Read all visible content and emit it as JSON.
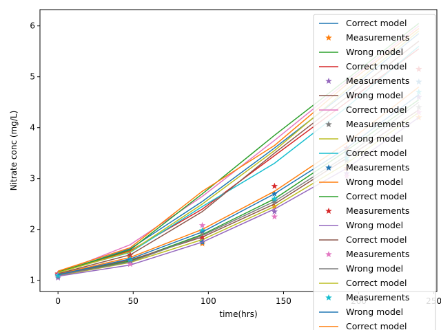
{
  "chart_data": {
    "type": "line",
    "title": "",
    "xlabel": "time(hrs)",
    "ylabel": "Nitrate conc (mg/L)",
    "xlim": [
      -12,
      252
    ],
    "ylim": [
      0.78,
      6.32
    ],
    "xticks": [
      0,
      50,
      100,
      150,
      200,
      250
    ],
    "yticks": [
      1,
      2,
      3,
      4,
      5,
      6
    ],
    "grid": false,
    "legend_position": "upper-right (clipped)",
    "legend": [
      {
        "label": "Correct model",
        "marker": "line",
        "color": "#1f77b4"
      },
      {
        "label": "Measurements",
        "marker": "star",
        "color": "#ff7f0e"
      },
      {
        "label": "Wrong model",
        "marker": "line",
        "color": "#2ca02c"
      },
      {
        "label": "Correct model",
        "marker": "line",
        "color": "#d62728"
      },
      {
        "label": "Measurements",
        "marker": "star",
        "color": "#9467bd"
      },
      {
        "label": "Wrong model",
        "marker": "line",
        "color": "#8c564b"
      },
      {
        "label": "Correct model",
        "marker": "line",
        "color": "#e377c2"
      },
      {
        "label": "Measurements",
        "marker": "star",
        "color": "#7f7f7f"
      },
      {
        "label": "Wrong model",
        "marker": "line",
        "color": "#bcbd22"
      },
      {
        "label": "Correct model",
        "marker": "line",
        "color": "#17becf"
      },
      {
        "label": "Measurements",
        "marker": "star",
        "color": "#1f77b4"
      },
      {
        "label": "Wrong model",
        "marker": "line",
        "color": "#ff7f0e"
      },
      {
        "label": "Correct model",
        "marker": "line",
        "color": "#2ca02c"
      },
      {
        "label": "Measurements",
        "marker": "star",
        "color": "#d62728"
      },
      {
        "label": "Wrong model",
        "marker": "line",
        "color": "#9467bd"
      },
      {
        "label": "Correct model",
        "marker": "line",
        "color": "#8c564b"
      },
      {
        "label": "Measurements",
        "marker": "star",
        "color": "#e377c2"
      },
      {
        "label": "Wrong model",
        "marker": "line",
        "color": "#7f7f7f"
      },
      {
        "label": "Correct model",
        "marker": "line",
        "color": "#bcbd22"
      },
      {
        "label": "Measurements",
        "marker": "star",
        "color": "#17becf"
      },
      {
        "label": "Wrong model",
        "marker": "line",
        "color": "#1f77b4"
      },
      {
        "label": "Correct model",
        "marker": "line",
        "color": "#ff7f0e"
      }
    ],
    "x": [
      0,
      48,
      96,
      144,
      192,
      240
    ],
    "series": [
      {
        "kind": "correct",
        "color": "#1f77b4",
        "values": [
          1.15,
          1.62,
          2.55,
          3.6,
          4.7,
          5.85
        ]
      },
      {
        "kind": "measurements",
        "color": "#ff7f0e",
        "values": [
          1.12,
          1.45,
          1.72,
          2.45,
          3.2,
          4.2
        ]
      },
      {
        "kind": "wrong",
        "color": "#2ca02c",
        "values": [
          1.1,
          1.38,
          1.9,
          2.6,
          3.55,
          4.55
        ]
      },
      {
        "kind": "correct",
        "color": "#d62728",
        "values": [
          1.17,
          1.58,
          2.4,
          3.45,
          4.5,
          5.55
        ]
      },
      {
        "kind": "measurements",
        "color": "#9467bd",
        "values": [
          1.05,
          1.32,
          1.8,
          2.35,
          3.1,
          4.6
        ]
      },
      {
        "kind": "wrong",
        "color": "#8c564b",
        "values": [
          1.11,
          1.4,
          1.85,
          2.5,
          3.4,
          4.35
        ]
      },
      {
        "kind": "correct",
        "color": "#e377c2",
        "values": [
          1.14,
          1.7,
          2.65,
          3.75,
          4.9,
          6.0
        ]
      },
      {
        "kind": "measurements",
        "color": "#7f7f7f",
        "values": [
          1.08,
          1.4,
          1.95,
          2.55,
          3.35,
          4.4
        ]
      },
      {
        "kind": "wrong",
        "color": "#bcbd22",
        "values": [
          1.09,
          1.35,
          1.8,
          2.45,
          3.3,
          4.3
        ]
      },
      {
        "kind": "correct",
        "color": "#17becf",
        "values": [
          1.16,
          1.55,
          2.45,
          3.3,
          4.4,
          5.6
        ]
      },
      {
        "kind": "measurements",
        "color": "#1f77b4",
        "values": [
          1.1,
          1.38,
          1.75,
          2.7,
          3.5,
          4.9
        ]
      },
      {
        "kind": "wrong",
        "color": "#ff7f0e",
        "values": [
          1.12,
          1.45,
          2.0,
          2.75,
          3.7,
          4.8
        ]
      },
      {
        "kind": "correct",
        "color": "#2ca02c",
        "values": [
          1.16,
          1.6,
          2.7,
          3.85,
          4.95,
          6.05
        ]
      },
      {
        "kind": "measurements",
        "color": "#d62728",
        "values": [
          1.13,
          1.5,
          1.85,
          2.85,
          3.6,
          5.15
        ]
      },
      {
        "kind": "wrong",
        "color": "#9467bd",
        "values": [
          1.08,
          1.3,
          1.75,
          2.4,
          3.2,
          4.2
        ]
      },
      {
        "kind": "correct",
        "color": "#8c564b",
        "values": [
          1.13,
          1.5,
          2.35,
          3.5,
          4.6,
          5.7
        ]
      },
      {
        "kind": "measurements",
        "color": "#e377c2",
        "values": [
          1.11,
          1.32,
          2.08,
          2.25,
          3.05,
          4.3
        ]
      },
      {
        "kind": "wrong",
        "color": "#7f7f7f",
        "values": [
          1.1,
          1.36,
          1.88,
          2.55,
          3.45,
          4.5
        ]
      },
      {
        "kind": "correct",
        "color": "#bcbd22",
        "values": [
          1.15,
          1.56,
          2.5,
          3.55,
          4.75,
          5.9
        ]
      },
      {
        "kind": "measurements",
        "color": "#17becf",
        "values": [
          1.09,
          1.42,
          1.98,
          2.6,
          3.4,
          4.7
        ]
      },
      {
        "kind": "wrong",
        "color": "#1f77b4",
        "values": [
          1.11,
          1.42,
          1.95,
          2.7,
          3.6,
          4.65
        ]
      },
      {
        "kind": "correct",
        "color": "#ff7f0e",
        "values": [
          1.18,
          1.64,
          2.75,
          3.65,
          4.85,
          5.95
        ]
      }
    ]
  }
}
